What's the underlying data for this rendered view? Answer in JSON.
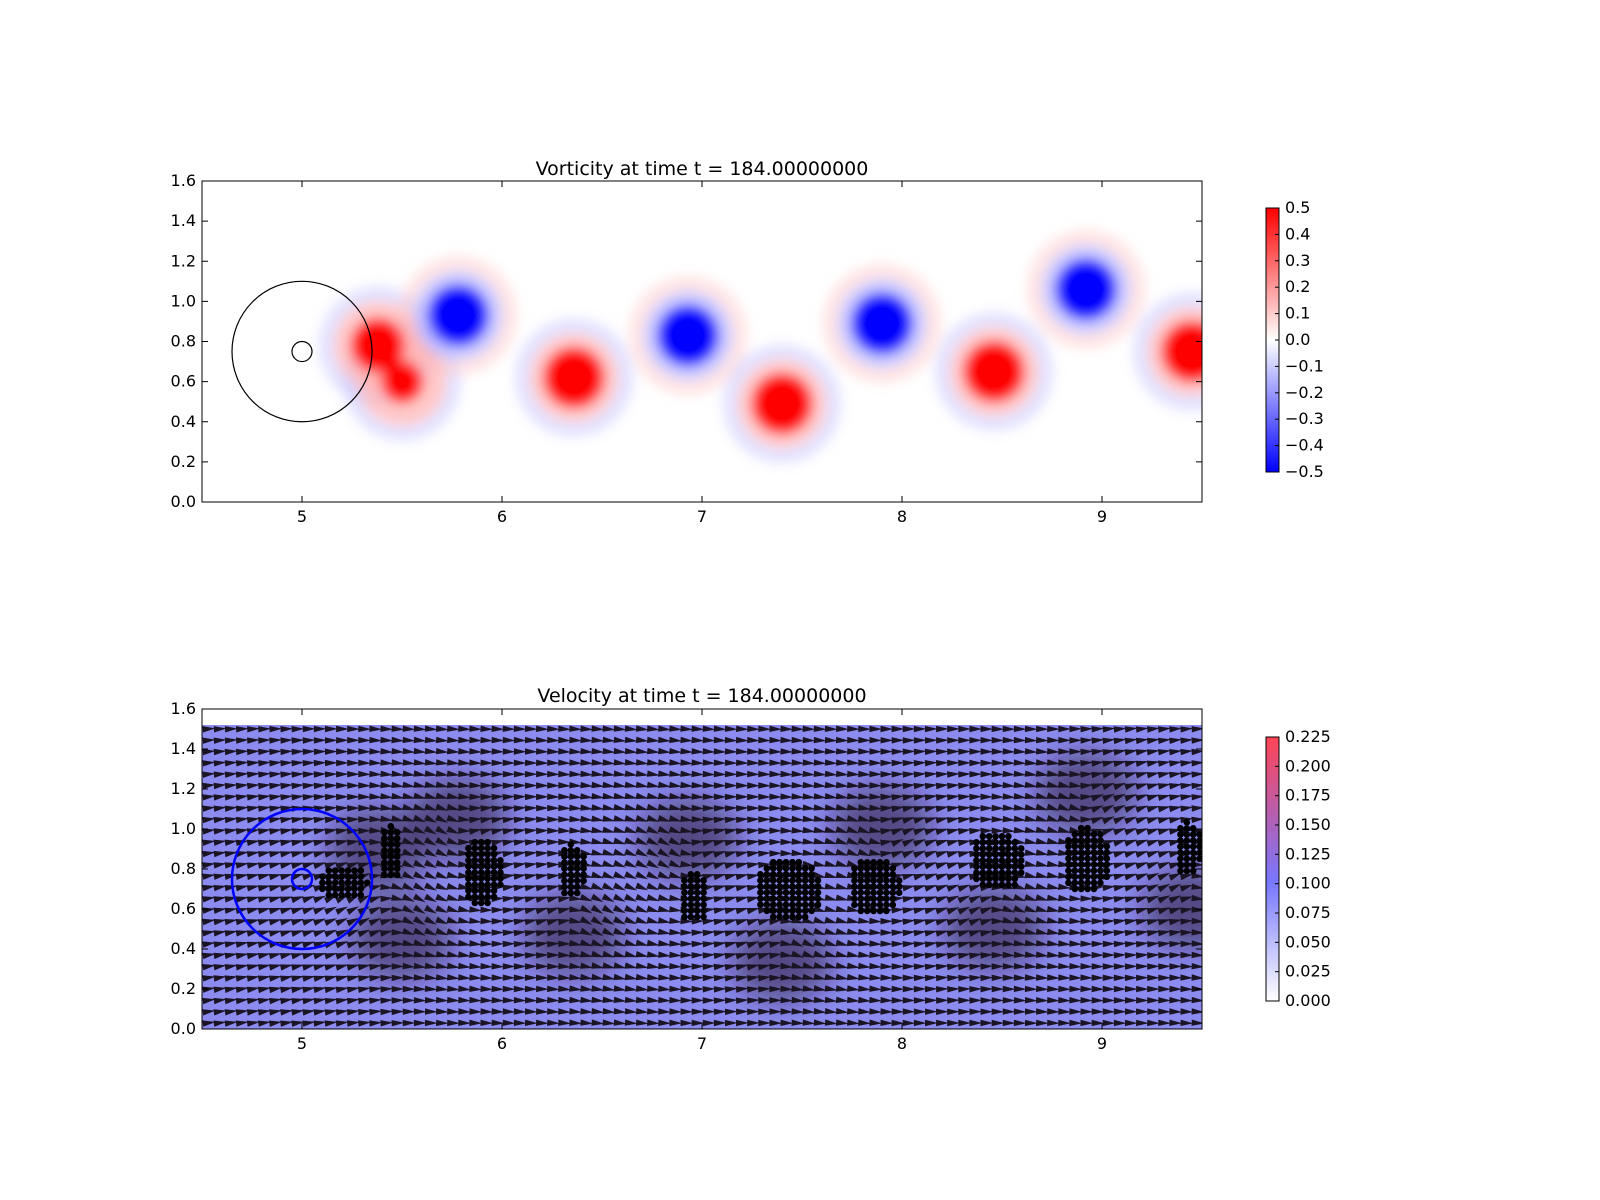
{
  "chart_data": [
    {
      "type": "heatmap",
      "title": "Vorticity at time t =   184.00000000",
      "xlim": [
        4.5,
        9.5
      ],
      "ylim": [
        0.0,
        1.6
      ],
      "xticks": [
        "5",
        "6",
        "7",
        "8",
        "9"
      ],
      "yticks": [
        "0.0",
        "0.2",
        "0.4",
        "0.6",
        "0.8",
        "1.0",
        "1.2",
        "1.4",
        "1.6"
      ],
      "colormap": "bwr",
      "color_low": "#0000ff",
      "color_mid": "#ffffff",
      "color_high": "#ff0000",
      "colorbar_range": [
        -0.5,
        0.5
      ],
      "colorbar_ticks": [
        "0.5",
        "0.4",
        "0.3",
        "0.2",
        "0.1",
        "0.0",
        "−0.1",
        "−0.2",
        "−0.3",
        "−0.4",
        "−0.5"
      ],
      "circles": [
        {
          "cx": 5.0,
          "cy": 0.75,
          "r": 0.35,
          "color": "#000000"
        },
        {
          "cx": 5.0,
          "cy": 0.75,
          "r": 0.05,
          "color": "#000000"
        }
      ],
      "vortices": [
        {
          "x": 5.38,
          "y": 0.78,
          "strength": 0.9
        },
        {
          "x": 5.5,
          "y": 0.6,
          "strength": 0.7
        },
        {
          "x": 5.78,
          "y": 0.93,
          "strength": -1.0
        },
        {
          "x": 6.36,
          "y": 0.62,
          "strength": 1.0
        },
        {
          "x": 6.93,
          "y": 0.83,
          "strength": -1.0
        },
        {
          "x": 7.4,
          "y": 0.49,
          "strength": 1.0
        },
        {
          "x": 7.9,
          "y": 0.89,
          "strength": -1.0
        },
        {
          "x": 8.46,
          "y": 0.65,
          "strength": 1.0
        },
        {
          "x": 8.92,
          "y": 1.06,
          "strength": -1.0
        },
        {
          "x": 9.45,
          "y": 0.75,
          "strength": 1.0
        }
      ]
    },
    {
      "type": "quiver",
      "title": "Velocity at time t =   184.00000000",
      "xlim": [
        4.5,
        9.5
      ],
      "ylim": [
        0.0,
        1.6
      ],
      "xticks": [
        "5",
        "6",
        "7",
        "8",
        "9"
      ],
      "yticks": [
        "0.0",
        "0.2",
        "0.4",
        "0.6",
        "0.8",
        "1.0",
        "1.2",
        "1.4",
        "1.6"
      ],
      "colormap": "white-blue-red",
      "color_low": "#ffffff",
      "color_mid": "#7777ff",
      "color_high": "#ff4455",
      "colorbar_range": [
        0.0,
        0.225
      ],
      "colorbar_ticks": [
        "0.225",
        "0.200",
        "0.175",
        "0.150",
        "0.125",
        "0.100",
        "0.075",
        "0.050",
        "0.025",
        "0.000"
      ],
      "flow_top": 1.52,
      "circles": [
        {
          "cx": 5.0,
          "cy": 0.75,
          "r": 0.35,
          "color": "#0000ff"
        },
        {
          "cx": 5.0,
          "cy": 0.75,
          "r": 0.05,
          "color": "#0000ff"
        }
      ],
      "particle_clusters": [
        {
          "x": 5.2,
          "y": 0.73,
          "rx": 0.13,
          "ry": 0.09
        },
        {
          "x": 5.44,
          "y": 0.88,
          "rx": 0.06,
          "ry": 0.14
        },
        {
          "x": 5.9,
          "y": 0.78,
          "rx": 0.1,
          "ry": 0.18
        },
        {
          "x": 6.35,
          "y": 0.79,
          "rx": 0.07,
          "ry": 0.14
        },
        {
          "x": 6.96,
          "y": 0.66,
          "rx": 0.08,
          "ry": 0.13
        },
        {
          "x": 7.43,
          "y": 0.69,
          "rx": 0.17,
          "ry": 0.16
        },
        {
          "x": 7.86,
          "y": 0.71,
          "rx": 0.13,
          "ry": 0.15
        },
        {
          "x": 8.48,
          "y": 0.84,
          "rx": 0.14,
          "ry": 0.15
        },
        {
          "x": 8.92,
          "y": 0.84,
          "rx": 0.12,
          "ry": 0.17
        },
        {
          "x": 9.43,
          "y": 0.9,
          "rx": 0.07,
          "ry": 0.14
        }
      ]
    }
  ]
}
